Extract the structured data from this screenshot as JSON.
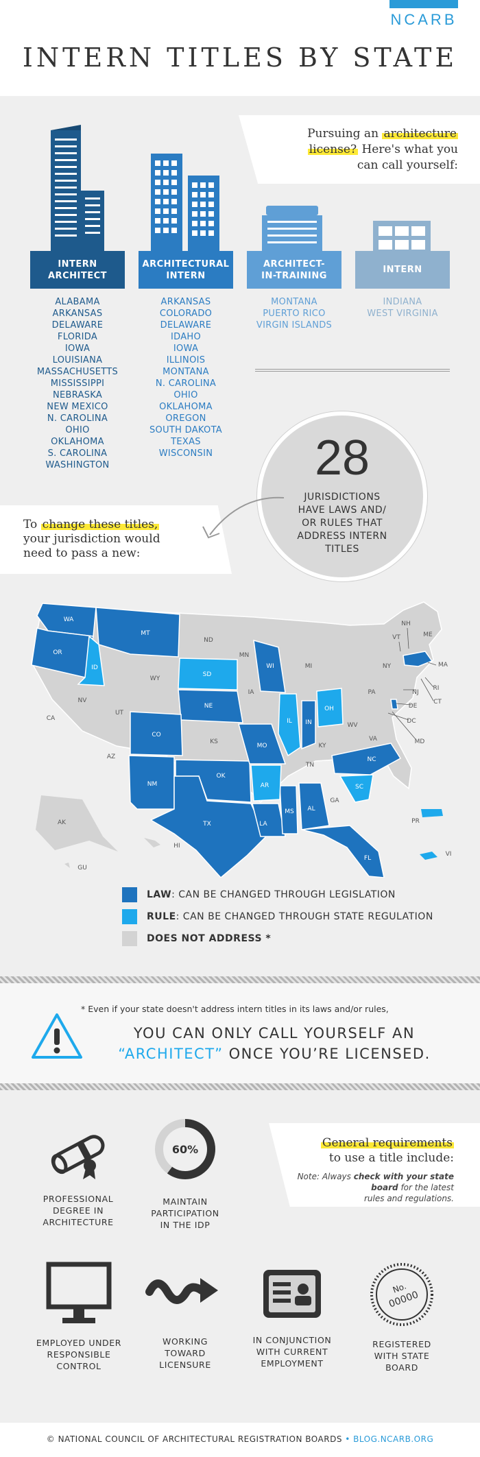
{
  "header": {
    "logo": "NCARB",
    "title": "INTERN TITLES BY STATE"
  },
  "intro": {
    "line1_pre": "Pursuing an ",
    "line1_hl": "architecture",
    "line2_hl": "license?",
    "line2_post": " Here's what you",
    "line3": "can call yourself:"
  },
  "columns": [
    {
      "title_line1": "INTERN",
      "title_line2": "ARCHITECT",
      "color": "#1e5a8c",
      "states": [
        "ALABAMA",
        "ARKANSAS",
        "DELAWARE",
        "FLORIDA",
        "IOWA",
        "LOUISIANA",
        "MASSACHUSETTS",
        "MISSISSIPPI",
        "NEBRASKA",
        "NEW MEXICO",
        "N. CAROLINA",
        "OHIO",
        "OKLAHOMA",
        "S. CAROLINA",
        "WASHINGTON"
      ]
    },
    {
      "title_line1": "ARCHITECTURAL",
      "title_line2": "INTERN",
      "color": "#2b7cc2",
      "states": [
        "ARKANSAS",
        "COLORADO",
        "DELAWARE",
        "IDAHO",
        "IOWA",
        "ILLINOIS",
        "MONTANA",
        "N. CAROLINA",
        "OHIO",
        "OKLAHOMA",
        "OREGON",
        "SOUTH DAKOTA",
        "TEXAS",
        "WISCONSIN"
      ]
    },
    {
      "title_line1": "ARCHITECT-",
      "title_line2": "IN-TRAINING",
      "color": "#5f9fd6",
      "states": [
        "MONTANA",
        "PUERTO RICO",
        "VIRGIN ISLANDS"
      ]
    },
    {
      "title_line1": "INTERN",
      "title_line2": "",
      "color": "#8fb1ce",
      "states": [
        "INDIANA",
        "WEST VIRGINIA"
      ]
    }
  ],
  "stat": {
    "number": "28",
    "line1": "JURISDICTIONS",
    "line2": "HAVE LAWS AND/",
    "line3": "OR RULES THAT",
    "line4": "ADDRESS INTERN",
    "line5": "TITLES"
  },
  "change": {
    "line1_pre": "To ",
    "line1_hl": "change these titles,",
    "line2": "your jurisdiction would",
    "line3": "need to pass a new:"
  },
  "map": {
    "colors": {
      "law": "#1e73be",
      "rule": "#1ea9ec",
      "none": "#d3d3d3"
    },
    "labels": [
      "WA",
      "OR",
      "CA",
      "NV",
      "ID",
      "MT",
      "WY",
      "UT",
      "AZ",
      "CO",
      "NM",
      "ND",
      "SD",
      "NE",
      "KS",
      "OK",
      "TX",
      "MN",
      "IA",
      "MO",
      "AR",
      "LA",
      "WI",
      "IL",
      "MI",
      "IN",
      "OH",
      "KY",
      "TN",
      "MS",
      "AL",
      "GA",
      "FL",
      "SC",
      "NC",
      "VA",
      "WV",
      "PA",
      "NY",
      "VT",
      "NH",
      "ME",
      "MA",
      "RI",
      "CT",
      "NJ",
      "DE",
      "MD",
      "DC",
      "AK",
      "HI",
      "GU",
      "PR",
      "VI"
    ]
  },
  "legend": [
    {
      "key": "LAW",
      "text": ": CAN BE CHANGED THROUGH LEGISLATION",
      "color": "#1e73be"
    },
    {
      "key": "RULE",
      "text": ": CAN BE CHANGED THROUGH STATE REGULATION",
      "color": "#1ea9ec"
    },
    {
      "key": "DOES NOT ADDRESS",
      "text": " *",
      "color": "#d3d3d3"
    }
  ],
  "warning": {
    "footnote": "* Even if your state doesn't address intern titles in its laws and/or rules,",
    "line1": "YOU CAN ONLY CALL YOURSELF AN",
    "line2_hl": "“ARCHITECT”",
    "line2_post": " ONCE YOU’RE LICENSED."
  },
  "requirements_card": {
    "title_hl": "General requirements",
    "title2": "to use a title include:",
    "note_label": "Note:",
    "note_pre": " Always ",
    "note_bold": "check with your state board",
    "note_post": " for the latest",
    "note_line3": "rules and regulations."
  },
  "requirements": [
    {
      "line1": "PROFESSIONAL",
      "line2": "DEGREE IN",
      "line3": "ARCHITECTURE"
    },
    {
      "line1": "MAINTAIN",
      "line2": "PARTICIPATION",
      "line3": "IN THE IDP",
      "percent_label": "60%",
      "percent": 0.6
    },
    {
      "line1": "EMPLOYED UNDER",
      "line2": "RESPONSIBLE",
      "line3": "CONTROL"
    },
    {
      "line1": "WORKING",
      "line2": "TOWARD",
      "line3": "LICENSURE"
    },
    {
      "line1": "IN CONJUNCTION",
      "line2": "WITH CURRENT",
      "line3": "EMPLOYMENT"
    },
    {
      "line1": "REGISTERED",
      "line2": "WITH STATE",
      "line3": "BOARD",
      "stamp_line1": "No.",
      "stamp_line2": "00000"
    }
  ],
  "footer": {
    "org": "© NATIONAL COUNCIL OF ARCHITECTURAL REGISTRATION BOARDS",
    "sep": " • ",
    "site": "BLOG.NCARB.ORG"
  }
}
